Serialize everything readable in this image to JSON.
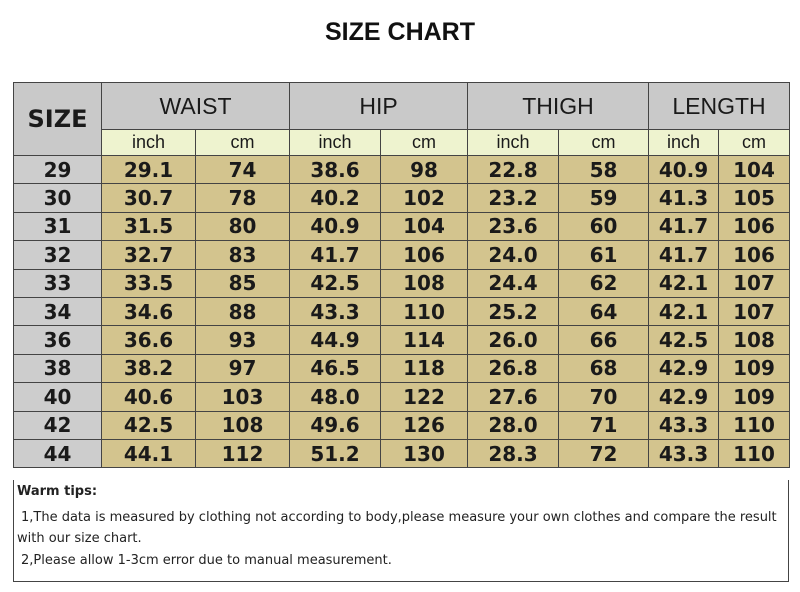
{
  "title": "SIZE CHART",
  "table": {
    "size_header": "SIZE",
    "groups": [
      "WAIST",
      "HIP",
      "THIGH",
      "LENGTH"
    ],
    "units": [
      "inch",
      "cm"
    ],
    "rows": [
      [
        "29",
        "29.1",
        "74",
        "38.6",
        "98",
        "22.8",
        "58",
        "40.9",
        "104"
      ],
      [
        "30",
        "30.7",
        "78",
        "40.2",
        "102",
        "23.2",
        "59",
        "41.3",
        "105"
      ],
      [
        "31",
        "31.5",
        "80",
        "40.9",
        "104",
        "23.6",
        "60",
        "41.7",
        "106"
      ],
      [
        "32",
        "32.7",
        "83",
        "41.7",
        "106",
        "24.0",
        "61",
        "41.7",
        "106"
      ],
      [
        "33",
        "33.5",
        "85",
        "42.5",
        "108",
        "24.4",
        "62",
        "42.1",
        "107"
      ],
      [
        "34",
        "34.6",
        "88",
        "43.3",
        "110",
        "25.2",
        "64",
        "42.1",
        "107"
      ],
      [
        "36",
        "36.6",
        "93",
        "44.9",
        "114",
        "26.0",
        "66",
        "42.5",
        "108"
      ],
      [
        "38",
        "38.2",
        "97",
        "46.5",
        "118",
        "26.8",
        "68",
        "42.9",
        "109"
      ],
      [
        "40",
        "40.6",
        "103",
        "48.0",
        "122",
        "27.6",
        "70",
        "42.9",
        "109"
      ],
      [
        "42",
        "42.5",
        "108",
        "49.6",
        "126",
        "28.0",
        "71",
        "43.3",
        "110"
      ],
      [
        "44",
        "44.1",
        "112",
        "51.2",
        "130",
        "28.3",
        "72",
        "43.3",
        "110"
      ]
    ]
  },
  "tips": {
    "heading": "Warm tips:",
    "items": [
      "1,The data is measured by clothing not according to body,please measure your own clothes and compare the result with our size chart.",
      "2,Please allow 1-3cm error due to manual measurement."
    ]
  },
  "colors": {
    "header": "#c9c9c9",
    "subheader": "#eef3cf",
    "cell": "#d3c48e",
    "size_cell": "#cdcdcd"
  }
}
